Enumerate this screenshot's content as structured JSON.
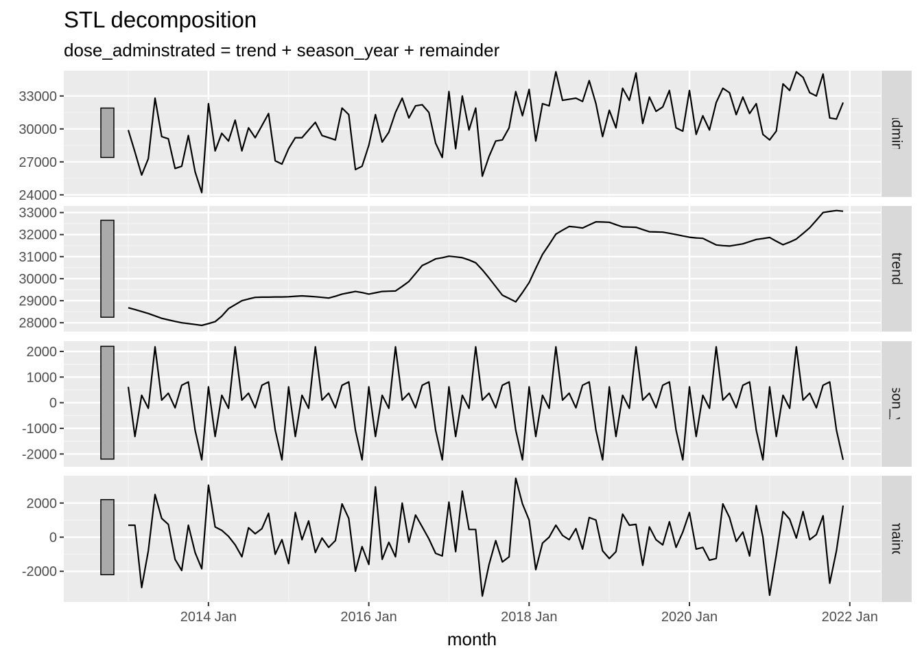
{
  "chart_data": {
    "type": "line",
    "title": "STL decomposition",
    "subtitle": "dose_adminstrated = trend + season_year + remainder",
    "xlabel": "month",
    "x_ticks": [
      "2014 Jan",
      "2016 Jan",
      "2018 Jan",
      "2020 Jan",
      "2022 Jan"
    ],
    "x_start": "2013 Jan",
    "x_end": "2021 Dec",
    "grid": true,
    "panels": [
      {
        "name": "dose_adminstrated",
        "ylim": [
          23800,
          35300
        ],
        "y_ticks": [
          24000,
          27000,
          30000,
          33000
        ],
        "y_tick_labels": [
          "24000",
          "27000",
          "30000",
          "33000"
        ],
        "scale_bar": [
          27400,
          31900
        ],
        "values": [
          29900,
          27900,
          25800,
          27300,
          32800,
          29300,
          29100,
          26400,
          26600,
          29400,
          26100,
          24200,
          32300,
          28000,
          29600,
          28900,
          30800,
          28000,
          30100,
          29200,
          30300,
          31400,
          27100,
          26800,
          28200,
          29200,
          29200,
          29900,
          30600,
          29400,
          29200,
          29000,
          31900,
          31300,
          26300,
          26600,
          28500,
          31300,
          28800,
          29700,
          31500,
          32800,
          31000,
          32100,
          32200,
          31500,
          28700,
          27400,
          33400,
          28200,
          33000,
          29900,
          31900,
          25700,
          27500,
          28900,
          29000,
          30100,
          33400,
          31200,
          33600,
          28900,
          32300,
          32100,
          35200,
          32600,
          32700,
          32800,
          32500,
          34400,
          32300,
          29300,
          31700,
          30100,
          33700,
          32600,
          35100,
          30500,
          32900,
          31600,
          32000,
          33500,
          30100,
          29800,
          33500,
          29500,
          31200,
          29900,
          32400,
          33700,
          33300,
          31300,
          32900,
          31400,
          32300,
          29500,
          29000,
          29800,
          34100,
          33500,
          35200,
          34700,
          33300,
          33000,
          35000,
          31000,
          30900,
          32400
        ]
      },
      {
        "name": "trend",
        "ylim": [
          27600,
          33300
        ],
        "y_ticks": [
          28000,
          29000,
          30000,
          31000,
          32000,
          33000
        ],
        "y_tick_labels": [
          "28000",
          "29000",
          "30000",
          "31000",
          "32000",
          "33000"
        ],
        "scale_bar": [
          28250,
          32650
        ],
        "values": [
          28680,
          28600,
          28510,
          28420,
          28310,
          28200,
          28130,
          28060,
          28000,
          27960,
          27920,
          27880,
          27960,
          28050,
          28300,
          28640,
          28820,
          29000,
          29080,
          29150,
          29160,
          29160,
          29170,
          29170,
          29180,
          29200,
          29220,
          29200,
          29180,
          29150,
          29120,
          29200,
          29300,
          29360,
          29420,
          29370,
          29300,
          29360,
          29420,
          29430,
          29440,
          29650,
          29870,
          30230,
          30600,
          30740,
          30900,
          30950,
          31020,
          30990,
          30950,
          30850,
          30720,
          30400,
          30030,
          29640,
          29250,
          29100,
          28950,
          29370,
          29820,
          30470,
          31100,
          31550,
          32020,
          32200,
          32370,
          32340,
          32300,
          32440,
          32580,
          32570,
          32560,
          32450,
          32350,
          32340,
          32330,
          32230,
          32130,
          32120,
          32110,
          32060,
          32000,
          31940,
          31880,
          31850,
          31830,
          31680,
          31530,
          31500,
          31480,
          31530,
          31580,
          31680,
          31780,
          31820,
          31870,
          31700,
          31540,
          31660,
          31800,
          32050,
          32310,
          32650,
          33000,
          33050,
          33090,
          33060
        ]
      },
      {
        "name": "season_year",
        "ylim": [
          -2500,
          2400
        ],
        "y_ticks": [
          -2000,
          -1000,
          0,
          1000,
          2000
        ],
        "y_tick_labels": [
          "-2000",
          "-1000",
          "0",
          "1000",
          "2000"
        ],
        "scale_bar": [
          -2200,
          2200
        ],
        "values": [
          620,
          -1320,
          290,
          -220,
          2180,
          100,
          370,
          -200,
          680,
          810,
          -1070,
          -2230,
          620,
          -1320,
          290,
          -220,
          2180,
          100,
          370,
          -200,
          680,
          810,
          -1070,
          -2230,
          620,
          -1320,
          290,
          -220,
          2180,
          100,
          370,
          -200,
          680,
          810,
          -1070,
          -2230,
          620,
          -1320,
          290,
          -220,
          2180,
          100,
          370,
          -200,
          680,
          810,
          -1070,
          -2230,
          620,
          -1320,
          290,
          -220,
          2180,
          100,
          370,
          -200,
          680,
          810,
          -1070,
          -2230,
          620,
          -1320,
          290,
          -220,
          2180,
          100,
          370,
          -200,
          680,
          810,
          -1070,
          -2230,
          620,
          -1320,
          290,
          -220,
          2180,
          100,
          370,
          -200,
          680,
          810,
          -1070,
          -2230,
          620,
          -1320,
          290,
          -220,
          2180,
          100,
          370,
          -200,
          680,
          810,
          -1070,
          -2230,
          620,
          -1320,
          290,
          -220,
          2180,
          100,
          370,
          -200,
          680,
          810,
          -1070,
          -2230
        ]
      },
      {
        "name": "remainder",
        "ylim": [
          -3800,
          3600
        ],
        "y_ticks": [
          -2000,
          0,
          2000
        ],
        "y_tick_labels": [
          "-2000",
          "0",
          "2000"
        ],
        "scale_bar": [
          -2200,
          2200
        ],
        "values": [
          700,
          700,
          -2950,
          -800,
          2500,
          1100,
          750,
          -1300,
          -1950,
          700,
          -900,
          -1850,
          3050,
          600,
          400,
          50,
          -450,
          -1150,
          550,
          200,
          500,
          1400,
          -1000,
          -150,
          -1550,
          1450,
          -150,
          950,
          -900,
          -50,
          -600,
          -200,
          1950,
          1100,
          -2000,
          -550,
          -1600,
          2950,
          -1300,
          -300,
          -1150,
          2000,
          -300,
          1300,
          600,
          -100,
          -950,
          -1100,
          2050,
          -850,
          2700,
          450,
          450,
          -3450,
          -1600,
          -200,
          -1450,
          -1150,
          3450,
          1950,
          1000,
          -1900,
          -350,
          0,
          700,
          100,
          -150,
          500,
          -700,
          1150,
          1000,
          -800,
          -1250,
          -850,
          1350,
          700,
          750,
          -1650,
          600,
          -150,
          -450,
          900,
          -600,
          300,
          1450,
          -700,
          -600,
          -1350,
          -1250,
          1950,
          1150,
          -250,
          300,
          -1100,
          1850,
          0,
          -3400,
          -1050,
          1500,
          1050,
          -50,
          1500,
          -150,
          150,
          1250,
          -2700,
          -800,
          1850
        ]
      }
    ]
  }
}
